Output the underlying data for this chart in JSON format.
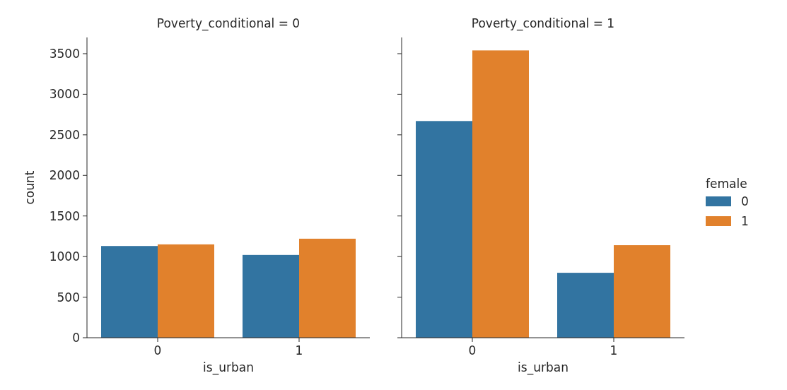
{
  "chart_data": [
    {
      "type": "bar",
      "title": "Poverty_conditional = 0",
      "xlabel": "is_urban",
      "ylabel": "count",
      "categories": [
        "0",
        "1"
      ],
      "series": [
        {
          "color": "#3274a1",
          "values": [
            1130,
            1020
          ]
        },
        {
          "color": "#e1812c",
          "values": [
            1150,
            1220
          ]
        }
      ],
      "ylim": [
        0,
        3700
      ],
      "yticks": [
        0,
        500,
        1000,
        1500,
        2000,
        2500,
        3000,
        3500
      ],
      "legend": false
    },
    {
      "type": "bar",
      "title": "Poverty_conditional = 1",
      "xlabel": "is_urban",
      "legend_title": "female",
      "categories": [
        "0",
        "1"
      ],
      "series": [
        {
          "name": "0",
          "color": "#3274a1",
          "values": [
            2670,
            800
          ]
        },
        {
          "name": "1",
          "color": "#e1812c",
          "values": [
            3540,
            1140
          ]
        }
      ],
      "ylim": [
        0,
        3700
      ],
      "yticks": [
        0,
        500,
        1000,
        1500,
        2000,
        2500,
        3000,
        3500
      ],
      "tick_labels": "x",
      "legend": "right"
    }
  ]
}
